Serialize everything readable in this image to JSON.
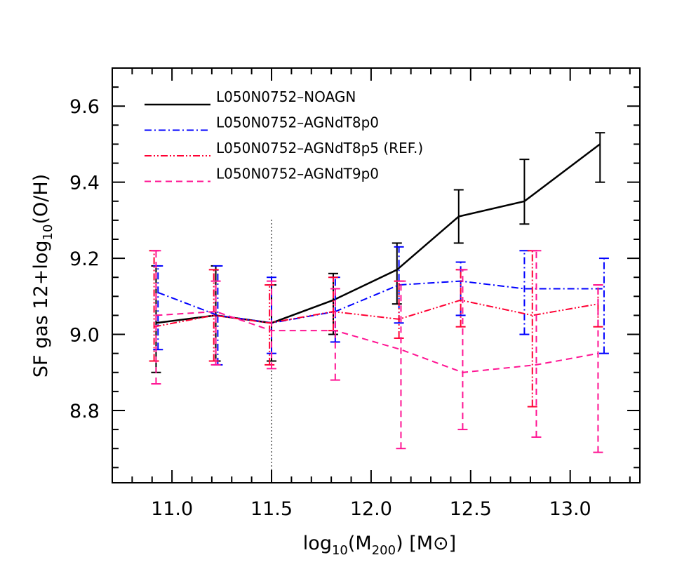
{
  "chart_data": {
    "type": "line",
    "title": "",
    "xlabel": "log10(M200) [M⊙]",
    "ylabel": "SF gas 12+log10(O/H)",
    "xlabel_parts": {
      "pre": "log",
      "sub": "10",
      "mid": "(M",
      "sub2": "200",
      "post": ")  [M",
      "sym": "⊙",
      "end": "]"
    },
    "ylabel_parts": {
      "pre": "SF gas 12+log",
      "sub": "10",
      "post": "(O/H)"
    },
    "xlim": [
      10.7,
      13.35
    ],
    "ylim": [
      8.61,
      9.7
    ],
    "xticks": [
      11.0,
      11.5,
      12.0,
      12.5,
      13.0
    ],
    "xtick_labels": [
      "11.0",
      "11.5",
      "12.0",
      "12.5",
      "13.0"
    ],
    "yticks": [
      8.8,
      9.0,
      9.2,
      9.4,
      9.6
    ],
    "ytick_labels": [
      "8.8",
      "9.0",
      "9.2",
      "9.4",
      "9.6"
    ],
    "x_minor_step": 0.1,
    "y_minor_step": 0.05,
    "grid": false,
    "legend_position": "top-left",
    "vline": {
      "x": 11.5,
      "style": "dotted"
    },
    "series": [
      {
        "name": "L050N0752–NOAGN",
        "color": "#000000",
        "dash": "none",
        "x": [
          10.92,
          11.22,
          11.5,
          11.81,
          12.13,
          12.44,
          12.77,
          13.15
        ],
        "y": [
          9.03,
          9.05,
          9.03,
          9.09,
          9.17,
          9.31,
          9.35,
          9.5
        ],
        "err_low": [
          8.9,
          8.93,
          8.93,
          9.0,
          9.08,
          9.24,
          9.29,
          9.4
        ],
        "err_high": [
          9.18,
          9.18,
          9.13,
          9.16,
          9.24,
          9.38,
          9.46,
          9.53
        ]
      },
      {
        "name": "L050N0752–AGNdT8p0",
        "color": "#0000ff",
        "dash": "dashdot",
        "x": [
          10.93,
          11.23,
          11.5,
          11.82,
          12.14,
          12.45,
          12.77,
          13.17
        ],
        "y": [
          9.11,
          9.05,
          9.03,
          9.06,
          9.13,
          9.14,
          9.12,
          9.12
        ],
        "err_low": [
          8.96,
          8.92,
          8.95,
          8.98,
          9.03,
          9.05,
          9.0,
          8.95
        ],
        "err_high": [
          9.18,
          9.18,
          9.15,
          9.15,
          9.23,
          9.19,
          9.22,
          9.2
        ]
      },
      {
        "name": "L050N0752–AGNdT8p5 (REF.)",
        "color": "#ff0033",
        "dash": "dashdotdot",
        "x": [
          10.91,
          11.21,
          11.49,
          11.81,
          12.14,
          12.45,
          12.81,
          13.14
        ],
        "y": [
          9.02,
          9.05,
          9.03,
          9.06,
          9.04,
          9.09,
          9.05,
          9.08
        ],
        "err_low": [
          8.93,
          8.93,
          8.92,
          9.01,
          8.99,
          9.02,
          8.81,
          9.02
        ],
        "err_high": [
          9.22,
          9.17,
          9.13,
          9.15,
          9.14,
          9.17,
          9.22,
          9.13
        ]
      },
      {
        "name": "L050N0752–AGNdT9p0",
        "color": "#ff1493",
        "dash": "dashed",
        "x": [
          10.92,
          11.22,
          11.5,
          11.82,
          12.15,
          12.46,
          12.83,
          13.14
        ],
        "y": [
          9.05,
          9.06,
          9.01,
          9.01,
          8.96,
          8.9,
          8.92,
          8.95
        ],
        "err_low": [
          8.87,
          8.92,
          8.91,
          8.88,
          8.7,
          8.75,
          8.73,
          8.69
        ],
        "err_high": [
          9.22,
          9.14,
          9.14,
          9.12,
          9.14,
          9.17,
          9.22,
          9.13
        ]
      }
    ]
  }
}
